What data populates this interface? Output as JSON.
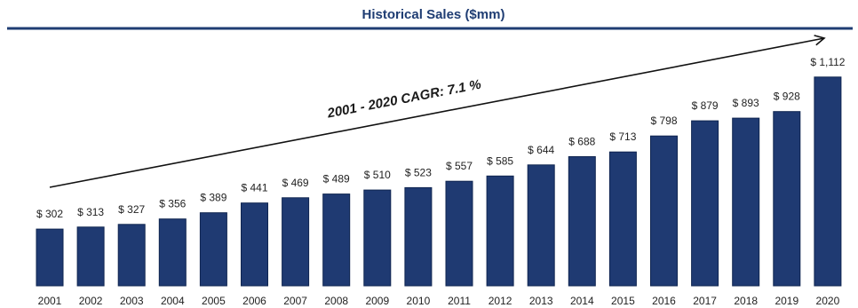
{
  "chart_data": {
    "type": "bar",
    "title": "Historical Sales ($mm)",
    "xlabel": "",
    "ylabel": "",
    "categories": [
      "2001",
      "2002",
      "2003",
      "2004",
      "2005",
      "2006",
      "2007",
      "2008",
      "2009",
      "2010",
      "2011",
      "2012",
      "2013",
      "2014",
      "2015",
      "2016",
      "2017",
      "2018",
      "2019",
      "2020"
    ],
    "values": [
      302,
      313,
      327,
      356,
      389,
      441,
      469,
      489,
      510,
      523,
      557,
      585,
      644,
      688,
      713,
      798,
      879,
      893,
      928,
      1112
    ],
    "data_labels": [
      "$ 302",
      "$ 313",
      "$ 327",
      "$ 356",
      "$ 389",
      "$ 441",
      "$ 469",
      "$ 489",
      "$ 510",
      "$ 523",
      "$ 557",
      "$ 585",
      "$ 644",
      "$ 688",
      "$ 713",
      "$ 798",
      "$ 879",
      "$ 893",
      "$ 928",
      "$ 1,112"
    ],
    "annotation": "2001 - 2020 CAGR: 7.1 %",
    "colors": {
      "bar": "#1f3a72",
      "bar_edge": "#0f2550",
      "title": "#1f3d73",
      "rule": "#1f3d73"
    },
    "grid": false,
    "legend": "none"
  }
}
